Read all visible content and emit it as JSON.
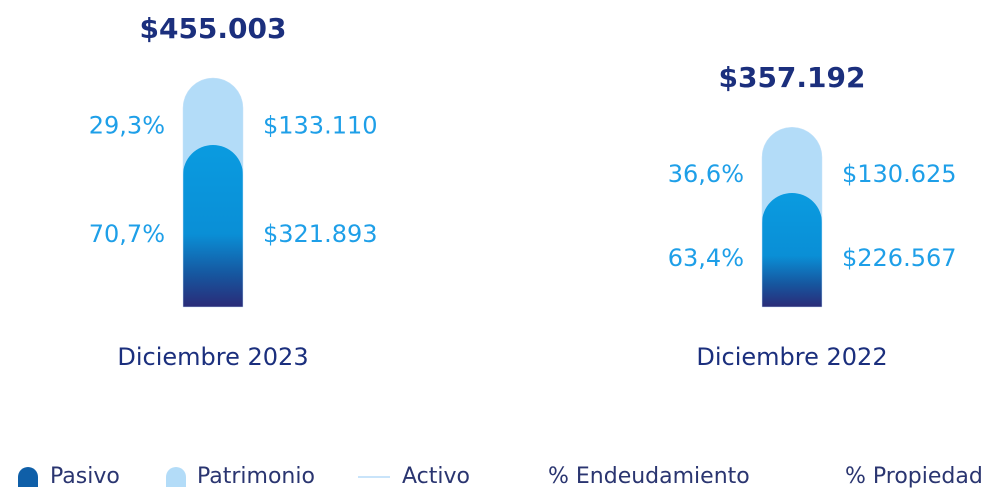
{
  "chart_data": {
    "type": "stacked_bar",
    "categories": [
      "Diciembre 2023",
      "Diciembre 2022"
    ],
    "series": [
      {
        "name": "Pasivo",
        "color": "#0a9be0",
        "values": [
          321893,
          226567
        ],
        "value_labels": [
          "$321.893",
          "$226.567"
        ]
      },
      {
        "name": "Patrimonio",
        "color": "#b3dcf8",
        "values": [
          133110,
          130625
        ],
        "value_labels": [
          "$133.110",
          "$130.625"
        ]
      }
    ],
    "total": {
      "name": "Activo",
      "color": "#c9e4fa",
      "values": [
        455003,
        357192
      ],
      "value_labels": [
        "$455.003",
        "$357.192"
      ]
    },
    "percentages": [
      {
        "name": "% Endeudamiento",
        "values": [
          70.7,
          63.4
        ],
        "value_labels": [
          "70,7%",
          "63,4%"
        ]
      },
      {
        "name": "% Propiedad",
        "values": [
          29.3,
          36.6
        ],
        "value_labels": [
          "29,3%",
          "36,6%"
        ]
      }
    ]
  }
}
